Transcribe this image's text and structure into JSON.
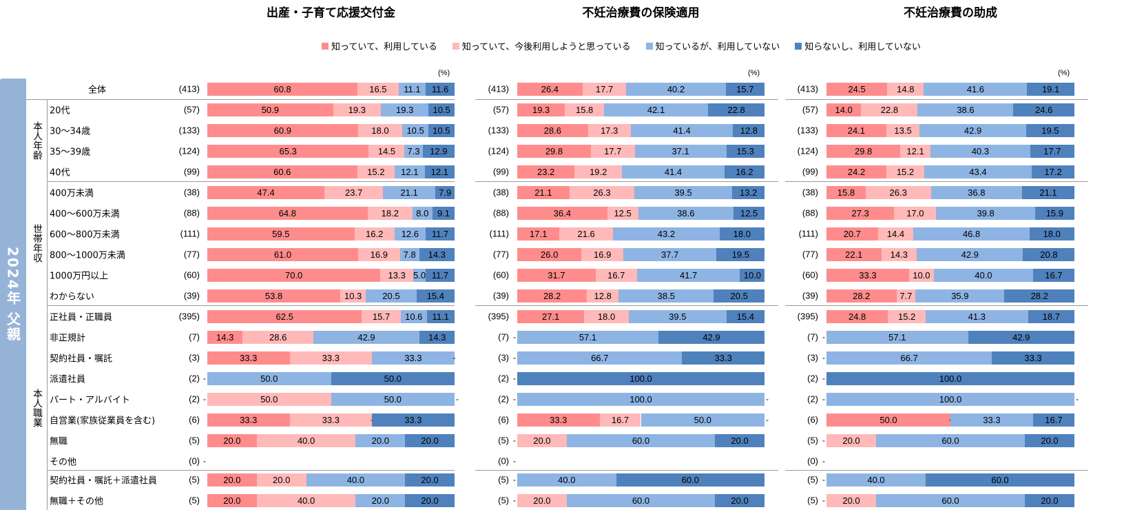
{
  "side_label": "2024年 父親",
  "colors": [
    "#FF8C8C",
    "#FFB9B9",
    "#8EB4E3",
    "#4F81BD"
  ],
  "legend": [
    "知っていて、利用している",
    "知っていて、今後利用しようと思っている",
    "知っているが、利用していない",
    "知らないし、利用していない"
  ],
  "unit": "(%)",
  "groups": [
    "本人年齢",
    "世帯年収",
    "本人職業"
  ],
  "rows": [
    {
      "label": "全体",
      "n": "(413)"
    },
    {
      "label": "20代",
      "n": "(57)"
    },
    {
      "label": "30～34歳",
      "n": "(133)"
    },
    {
      "label": "35～39歳",
      "n": "(124)"
    },
    {
      "label": "40代",
      "n": "(99)"
    },
    {
      "label": "400万未満",
      "n": "(38)"
    },
    {
      "label": "400～600万未満",
      "n": "(88)"
    },
    {
      "label": "600～800万未満",
      "n": "(111)"
    },
    {
      "label": "800～1000万未満",
      "n": "(77)"
    },
    {
      "label": "1000万円以上",
      "n": "(60)"
    },
    {
      "label": "わからない",
      "n": "(39)"
    },
    {
      "label": "正社員・正職員",
      "n": "(395)"
    },
    {
      "label": "非正規計",
      "n": "(7)"
    },
    {
      "label": "契約社員・嘱託",
      "n": "(3)"
    },
    {
      "label": "派遣社員",
      "n": "(2)"
    },
    {
      "label": "パート・アルバイト",
      "n": "(2)"
    },
    {
      "label": "自営業(家族従業員を含む)",
      "n": "(6)"
    },
    {
      "label": "無職",
      "n": "(5)"
    },
    {
      "label": "その他",
      "n": "(0)"
    },
    {
      "label": "契約社員・嘱託＋派遣社員",
      "n": "(5)"
    },
    {
      "label": "無職＋その他",
      "n": "(5)"
    }
  ],
  "chart_data": [
    {
      "type": "bar",
      "stacked": true,
      "orientation": "horizontal",
      "title": "出産・子育て応援交付金",
      "xlim": [
        0,
        100
      ],
      "values": [
        [
          60.8,
          16.5,
          11.1,
          11.6
        ],
        [
          50.9,
          19.3,
          19.3,
          10.5
        ],
        [
          60.9,
          18.0,
          10.5,
          10.5
        ],
        [
          65.3,
          14.5,
          7.3,
          12.9
        ],
        [
          60.6,
          15.2,
          12.1,
          12.1
        ],
        [
          47.4,
          23.7,
          21.1,
          7.9
        ],
        [
          64.8,
          18.2,
          8.0,
          9.1
        ],
        [
          59.5,
          16.2,
          12.6,
          11.7
        ],
        [
          61.0,
          16.9,
          7.8,
          14.3
        ],
        [
          70.0,
          13.3,
          5.0,
          11.7
        ],
        [
          53.8,
          10.3,
          20.5,
          15.4
        ],
        [
          62.5,
          15.7,
          10.6,
          11.1
        ],
        [
          14.3,
          28.6,
          42.9,
          14.3
        ],
        [
          33.3,
          33.3,
          33.3,
          0
        ],
        [
          0,
          0,
          50.0,
          50.0
        ],
        [
          0,
          50.0,
          50.0,
          0
        ],
        [
          33.3,
          33.3,
          0,
          33.3
        ],
        [
          20.0,
          40.0,
          20.0,
          20.0
        ],
        null,
        [
          20.0,
          20.0,
          40.0,
          20.0
        ],
        [
          20.0,
          40.0,
          20.0,
          20.0
        ]
      ]
    },
    {
      "type": "bar",
      "stacked": true,
      "orientation": "horizontal",
      "title": "不妊治療費の保険適用",
      "xlim": [
        0,
        100
      ],
      "values": [
        [
          26.4,
          17.7,
          40.2,
          15.7
        ],
        [
          19.3,
          15.8,
          42.1,
          22.8
        ],
        [
          28.6,
          17.3,
          41.4,
          12.8
        ],
        [
          29.8,
          17.7,
          37.1,
          15.3
        ],
        [
          23.2,
          19.2,
          41.4,
          16.2
        ],
        [
          21.1,
          26.3,
          39.5,
          13.2
        ],
        [
          36.4,
          12.5,
          38.6,
          12.5
        ],
        [
          17.1,
          21.6,
          43.2,
          18.0
        ],
        [
          26.0,
          16.9,
          37.7,
          19.5
        ],
        [
          31.7,
          16.7,
          41.7,
          10.0
        ],
        [
          28.2,
          12.8,
          38.5,
          20.5
        ],
        [
          27.1,
          18.0,
          39.5,
          15.4
        ],
        [
          0,
          0,
          57.1,
          42.9
        ],
        [
          0,
          0,
          66.7,
          33.3
        ],
        [
          0,
          0,
          0,
          100.0
        ],
        [
          0,
          0,
          100.0,
          0
        ],
        [
          33.3,
          16.7,
          50.0,
          0
        ],
        [
          0,
          20.0,
          60.0,
          20.0
        ],
        null,
        [
          0,
          0,
          40.0,
          60.0
        ],
        [
          0,
          20.0,
          60.0,
          20.0
        ]
      ]
    },
    {
      "type": "bar",
      "stacked": true,
      "orientation": "horizontal",
      "title": "不妊治療費の助成",
      "xlim": [
        0,
        100
      ],
      "values": [
        [
          24.5,
          14.8,
          41.6,
          19.1
        ],
        [
          14.0,
          22.8,
          38.6,
          24.6
        ],
        [
          24.1,
          13.5,
          42.9,
          19.5
        ],
        [
          29.8,
          12.1,
          40.3,
          17.7
        ],
        [
          24.2,
          15.2,
          43.4,
          17.2
        ],
        [
          15.8,
          26.3,
          36.8,
          21.1
        ],
        [
          27.3,
          17.0,
          39.8,
          15.9
        ],
        [
          20.7,
          14.4,
          46.8,
          18.0
        ],
        [
          22.1,
          14.3,
          42.9,
          20.8
        ],
        [
          33.3,
          10.0,
          40.0,
          16.7
        ],
        [
          28.2,
          7.7,
          35.9,
          28.2
        ],
        [
          24.8,
          15.2,
          41.3,
          18.7
        ],
        [
          0,
          0,
          57.1,
          42.9
        ],
        [
          0,
          0,
          66.7,
          33.3
        ],
        [
          0,
          0,
          0,
          100.0
        ],
        [
          0,
          0,
          100.0,
          0
        ],
        [
          50.0,
          0,
          33.3,
          16.7
        ],
        [
          0,
          20.0,
          60.0,
          20.0
        ],
        null,
        [
          0,
          0,
          40.0,
          60.0
        ],
        [
          0,
          20.0,
          60.0,
          20.0
        ]
      ]
    }
  ]
}
